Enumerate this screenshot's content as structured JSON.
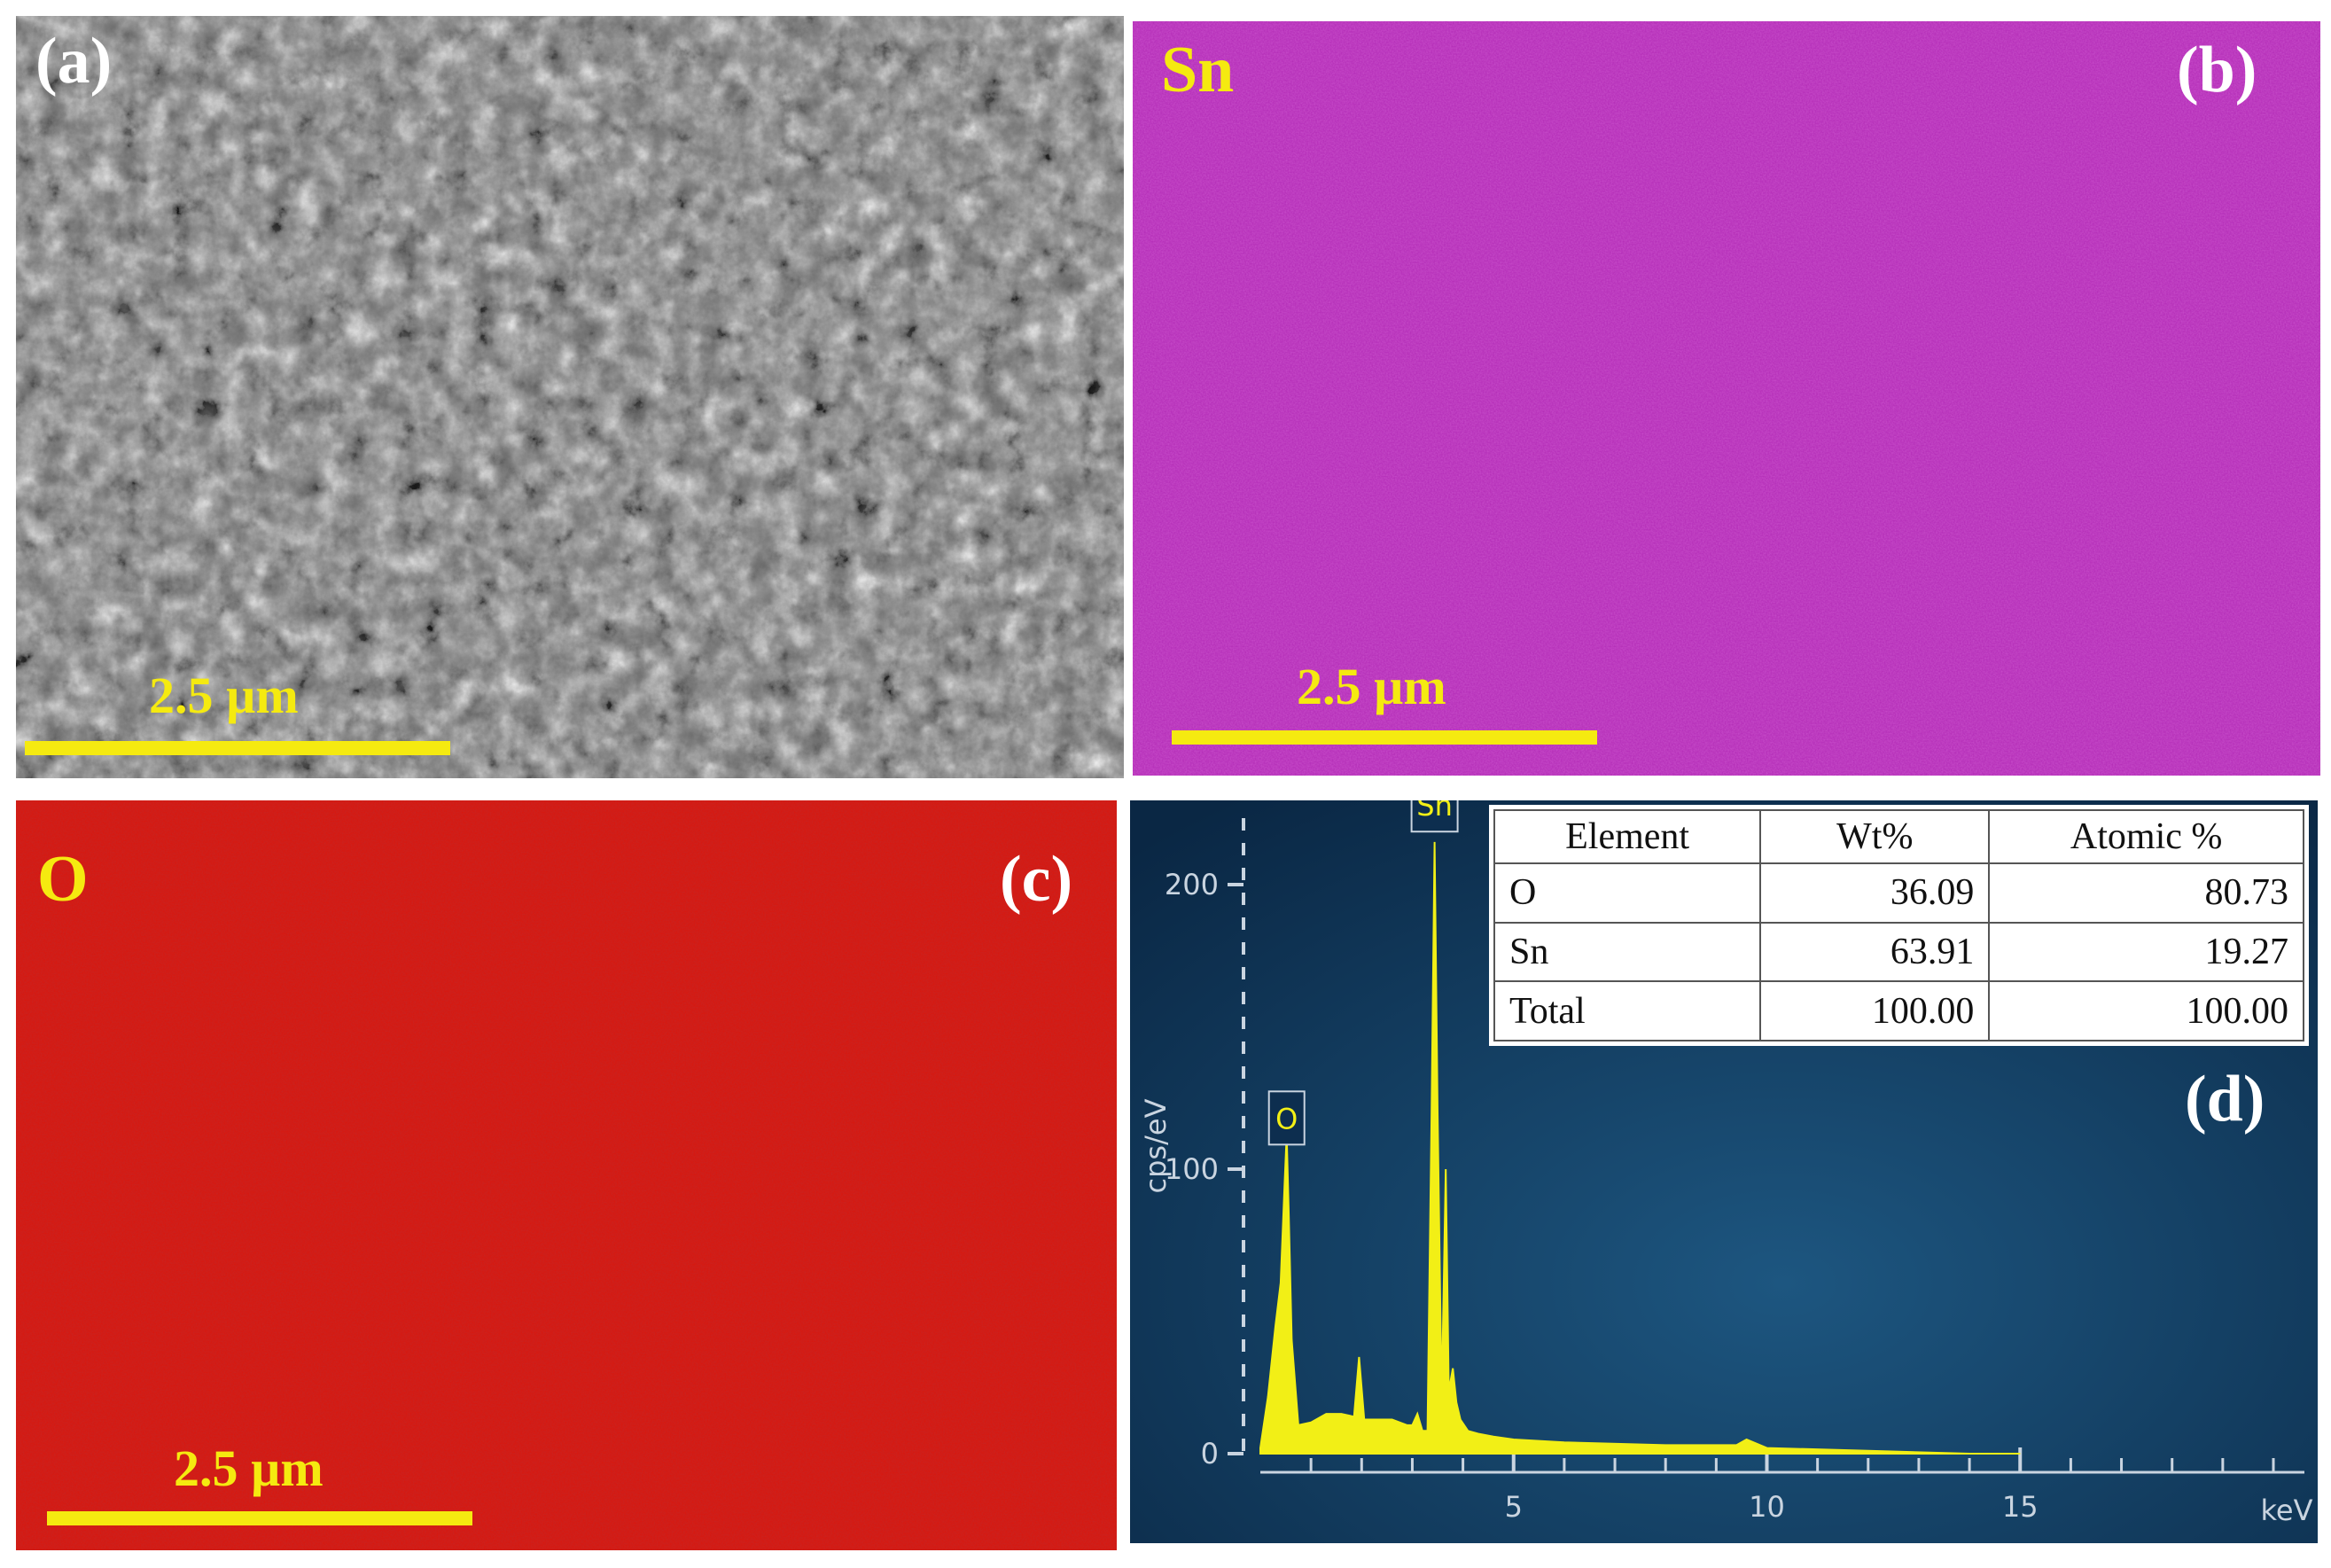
{
  "panels": {
    "a": {
      "tag": "(a)",
      "scale": "2.5 µm"
    },
    "b": {
      "element": "Sn",
      "tag": "(b)",
      "scale": "2.5 µm",
      "color": "#a22aa5"
    },
    "c": {
      "element": "O",
      "tag": "(c)",
      "scale": "2.5 µm",
      "color": "#c41010"
    },
    "d": {
      "tag": "(d)"
    }
  },
  "chart_data": {
    "type": "line",
    "ylabel": "cps/eV",
    "xlabel": "keV",
    "xlim": [
      0,
      20
    ],
    "ylim": [
      0,
      200
    ],
    "x_ticks": [
      5,
      10,
      15
    ],
    "y_ticks": [
      0,
      100,
      200
    ],
    "peak_labels": [
      {
        "label": "O",
        "x": 0.52,
        "y": 108
      },
      {
        "label": "Sn",
        "x": 3.44,
        "y": 218
      }
    ],
    "series": [
      {
        "x": [
          0.0,
          0.15,
          0.3,
          0.4,
          0.48,
          0.52,
          0.56,
          0.62,
          0.75,
          1.0,
          1.3,
          1.6,
          1.85,
          1.95,
          2.05,
          2.2,
          2.6,
          2.9,
          3.0,
          3.1,
          3.2,
          3.3,
          3.38,
          3.44,
          3.5,
          3.58,
          3.66,
          3.72,
          3.8,
          3.87,
          3.95,
          4.1,
          4.3,
          4.6,
          5.0,
          6.0,
          8.0,
          9.4,
          9.6,
          10.0,
          12.0,
          14.0,
          15.0
        ],
        "y": [
          2,
          20,
          45,
          60,
          95,
          112,
          85,
          40,
          10,
          11,
          14,
          14,
          13,
          34,
          12,
          12,
          12,
          10,
          10,
          14,
          8,
          8,
          120,
          215,
          120,
          18,
          100,
          22,
          30,
          18,
          12,
          8,
          7,
          6,
          5,
          4,
          3,
          3,
          5,
          2,
          1,
          0,
          0
        ]
      }
    ]
  },
  "table": {
    "headers": [
      "Element",
      "Wt%",
      "Atomic %"
    ],
    "rows": [
      [
        "O",
        "36.09",
        "80.73"
      ],
      [
        "Sn",
        "63.91",
        "19.27"
      ],
      [
        "Total",
        "100.00",
        "100.00"
      ]
    ]
  }
}
